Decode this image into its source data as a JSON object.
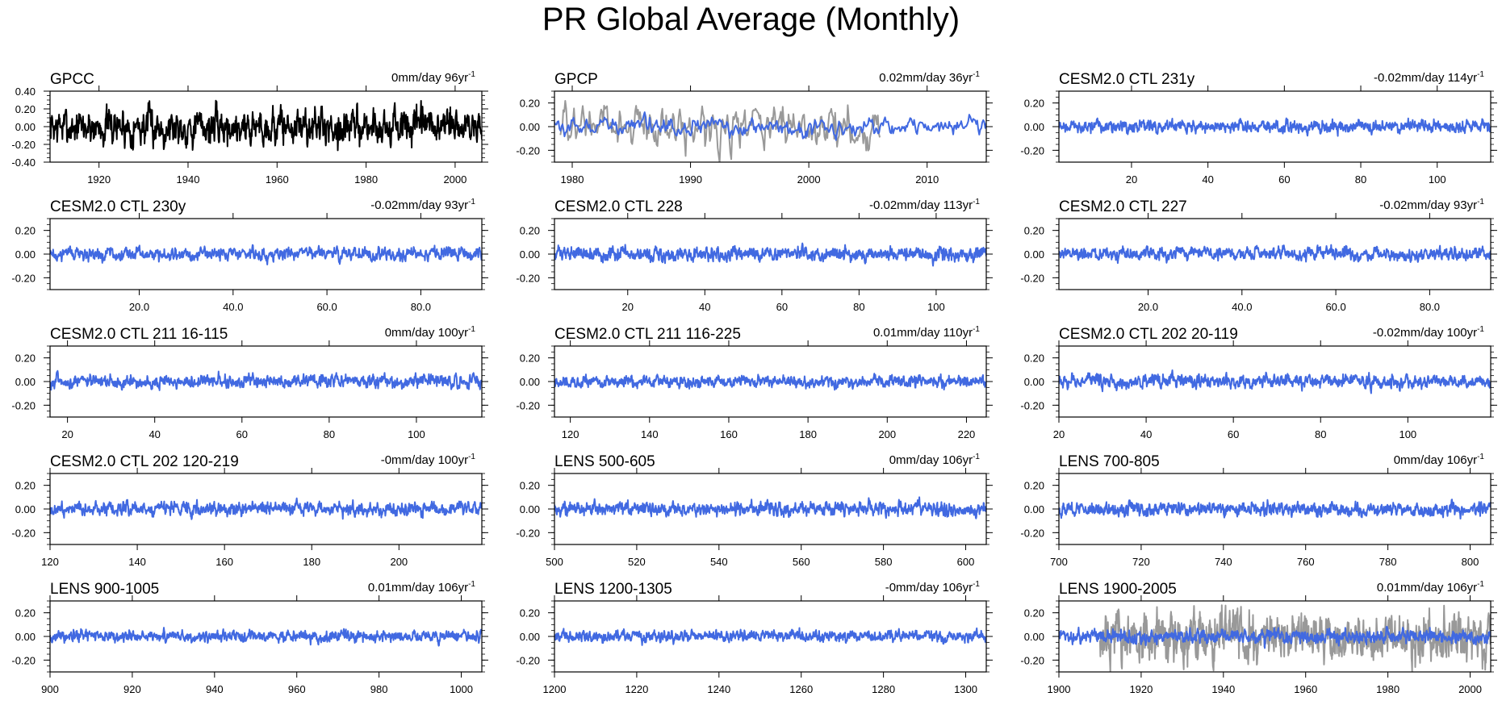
{
  "title": "PR Global Average (Monthly)",
  "colors": {
    "model": "#4169e1",
    "obs": "#000000",
    "obs_overlay": "#999999",
    "axes": "#000000"
  },
  "chart_data": [
    {
      "type": "line",
      "title": "GPCC",
      "trend": "0mm/day 96yr",
      "trend_sup": "-1",
      "x_range": [
        1909,
        2006
      ],
      "ylim": [
        -0.4,
        0.4
      ],
      "yticks": [
        "0.40",
        "0.20",
        "0.00",
        "-0.20",
        "-0.40"
      ],
      "ytick_values": [
        0.4,
        0.2,
        0,
        -0.2,
        -0.4
      ],
      "xticks": [
        "1920",
        "1940",
        "1960",
        "1980",
        "2000"
      ],
      "xtick_values": [
        1920,
        1940,
        1960,
        1980,
        2000
      ],
      "series": [
        {
          "name": "GPCC",
          "role": "obs",
          "amplitude": 0.26,
          "points": 1152
        }
      ]
    },
    {
      "type": "line",
      "title": "GPCP",
      "trend": "0.02mm/day 36yr",
      "trend_sup": "-1",
      "x_range": [
        1978.5,
        2015
      ],
      "ylim": [
        -0.3,
        0.3
      ],
      "yticks": [
        "0.20",
        "0.00",
        "-0.20"
      ],
      "ytick_values": [
        0.2,
        0,
        -0.2
      ],
      "xticks": [
        "1980",
        "1990",
        "2000",
        "2010"
      ],
      "xtick_values": [
        1980,
        1990,
        2000,
        2010
      ],
      "series": [
        {
          "name": "GPCP",
          "role": "obs_overlay",
          "amplitude": 0.22,
          "points": 330,
          "x_range": [
            1979,
            2006
          ]
        },
        {
          "name": "GPCP",
          "role": "model",
          "amplitude": 0.09,
          "points": 432
        }
      ]
    },
    {
      "type": "line",
      "title": "CESM2.0 CTL 231y",
      "trend": "-0.02mm/day 114yr",
      "trend_sup": "-1",
      "x_range": [
        1,
        114
      ],
      "ylim": [
        -0.3,
        0.3
      ],
      "yticks": [
        "0.20",
        "0.00",
        "-0.20"
      ],
      "ytick_values": [
        0.2,
        0,
        -0.2
      ],
      "xticks": [
        "20",
        "40",
        "60",
        "80",
        "100"
      ],
      "xtick_values": [
        20,
        40,
        60,
        80,
        100
      ],
      "series": [
        {
          "name": "CESM2.0 CTL 231y",
          "role": "model",
          "amplitude": 0.06,
          "points": 1368
        }
      ]
    },
    {
      "type": "line",
      "title": "CESM2.0 CTL 230y",
      "trend": "-0.02mm/day 93yr",
      "trend_sup": "-1",
      "x_range": [
        1,
        93
      ],
      "ylim": [
        -0.3,
        0.3
      ],
      "yticks": [
        "0.20",
        "0.00",
        "-0.20"
      ],
      "ytick_values": [
        0.2,
        0,
        -0.2
      ],
      "xticks": [
        "20.0",
        "40.0",
        "60.0",
        "80.0"
      ],
      "xtick_values": [
        20,
        40,
        60,
        80
      ],
      "series": [
        {
          "name": "CESM2.0 CTL 230y",
          "role": "model",
          "amplitude": 0.07,
          "points": 1116
        }
      ]
    },
    {
      "type": "line",
      "title": "CESM2.0 CTL 228",
      "trend": "-0.02mm/day 113yr",
      "trend_sup": "-1",
      "x_range": [
        1,
        113
      ],
      "ylim": [
        -0.3,
        0.3
      ],
      "yticks": [
        "0.20",
        "0.00",
        "-0.20"
      ],
      "ytick_values": [
        0.2,
        0,
        -0.2
      ],
      "xticks": [
        "20",
        "40",
        "60",
        "80",
        "100"
      ],
      "xtick_values": [
        20,
        40,
        60,
        80,
        100
      ],
      "series": [
        {
          "name": "CESM2.0 CTL 228",
          "role": "model",
          "amplitude": 0.07,
          "points": 1356
        }
      ]
    },
    {
      "type": "line",
      "title": "CESM2.0 CTL 227",
      "trend": "-0.02mm/day 93yr",
      "trend_sup": "-1",
      "x_range": [
        1,
        93
      ],
      "ylim": [
        -0.3,
        0.3
      ],
      "yticks": [
        "0.20",
        "0.00",
        "-0.20"
      ],
      "ytick_values": [
        0.2,
        0,
        -0.2
      ],
      "xticks": [
        "20.0",
        "40.0",
        "60.0",
        "80.0"
      ],
      "xtick_values": [
        20,
        40,
        60,
        80
      ],
      "series": [
        {
          "name": "CESM2.0 CTL 227",
          "role": "model",
          "amplitude": 0.07,
          "points": 1116
        }
      ]
    },
    {
      "type": "line",
      "title": "CESM2.0 CTL 211 16-115",
      "trend": "0mm/day 100yr",
      "trend_sup": "-1",
      "x_range": [
        16,
        115
      ],
      "ylim": [
        -0.3,
        0.3
      ],
      "yticks": [
        "0.20",
        "0.00",
        "-0.20"
      ],
      "ytick_values": [
        0.2,
        0,
        -0.2
      ],
      "xticks": [
        "20",
        "40",
        "60",
        "80",
        "100"
      ],
      "xtick_values": [
        20,
        40,
        60,
        80,
        100
      ],
      "series": [
        {
          "name": "CESM2.0 CTL 211 16-115",
          "role": "model",
          "amplitude": 0.07,
          "points": 1200
        }
      ]
    },
    {
      "type": "line",
      "title": "CESM2.0 CTL 211 116-225",
      "trend": "0.01mm/day 110yr",
      "trend_sup": "-1",
      "x_range": [
        116,
        225
      ],
      "ylim": [
        -0.3,
        0.3
      ],
      "yticks": [
        "0.20",
        "0.00",
        "-0.20"
      ],
      "ytick_values": [
        0.2,
        0,
        -0.2
      ],
      "xticks": [
        "120",
        "140",
        "160",
        "180",
        "200",
        "220"
      ],
      "xtick_values": [
        120,
        140,
        160,
        180,
        200,
        220
      ],
      "series": [
        {
          "name": "CESM2.0 CTL 211 116-225",
          "role": "model",
          "amplitude": 0.06,
          "points": 1320
        }
      ]
    },
    {
      "type": "line",
      "title": "CESM2.0 CTL 202 20-119",
      "trend": "-0.02mm/day 100yr",
      "trend_sup": "-1",
      "x_range": [
        20,
        119
      ],
      "ylim": [
        -0.3,
        0.3
      ],
      "yticks": [
        "0.20",
        "0.00",
        "-0.20"
      ],
      "ytick_values": [
        0.2,
        0,
        -0.2
      ],
      "xticks": [
        "20",
        "40",
        "60",
        "80",
        "100"
      ],
      "xtick_values": [
        20,
        40,
        60,
        80,
        100
      ],
      "series": [
        {
          "name": "CESM2.0 CTL 202 20-119",
          "role": "model",
          "amplitude": 0.07,
          "points": 1200
        }
      ]
    },
    {
      "type": "line",
      "title": "CESM2.0 CTL 202 120-219",
      "trend": "-0mm/day 100yr",
      "trend_sup": "-1",
      "x_range": [
        120,
        219
      ],
      "ylim": [
        -0.3,
        0.3
      ],
      "yticks": [
        "0.20",
        "0.00",
        "-0.20"
      ],
      "ytick_values": [
        0.2,
        0,
        -0.2
      ],
      "xticks": [
        "120",
        "140",
        "160",
        "180",
        "200"
      ],
      "xtick_values": [
        120,
        140,
        160,
        180,
        200
      ],
      "series": [
        {
          "name": "CESM2.0 CTL 202 120-219",
          "role": "model",
          "amplitude": 0.07,
          "points": 1200
        }
      ]
    },
    {
      "type": "line",
      "title": "LENS 500-605",
      "trend": "0mm/day 106yr",
      "trend_sup": "-1",
      "x_range": [
        500,
        605
      ],
      "ylim": [
        -0.3,
        0.3
      ],
      "yticks": [
        "0.20",
        "0.00",
        "-0.20"
      ],
      "ytick_values": [
        0.2,
        0,
        -0.2
      ],
      "xticks": [
        "500",
        "520",
        "540",
        "560",
        "580",
        "600"
      ],
      "xtick_values": [
        500,
        520,
        540,
        560,
        580,
        600
      ],
      "series": [
        {
          "name": "LENS 500-605",
          "role": "model",
          "amplitude": 0.07,
          "points": 1272
        }
      ]
    },
    {
      "type": "line",
      "title": "LENS 700-805",
      "trend": "0mm/day 106yr",
      "trend_sup": "-1",
      "x_range": [
        700,
        805
      ],
      "ylim": [
        -0.3,
        0.3
      ],
      "yticks": [
        "0.20",
        "0.00",
        "-0.20"
      ],
      "ytick_values": [
        0.2,
        0,
        -0.2
      ],
      "xticks": [
        "700",
        "720",
        "740",
        "760",
        "780",
        "800"
      ],
      "xtick_values": [
        700,
        720,
        740,
        760,
        780,
        800
      ],
      "series": [
        {
          "name": "LENS 700-805",
          "role": "model",
          "amplitude": 0.07,
          "points": 1272
        }
      ]
    },
    {
      "type": "line",
      "title": "LENS 900-1005",
      "trend": "0.01mm/day 106yr",
      "trend_sup": "-1",
      "x_range": [
        900,
        1005
      ],
      "ylim": [
        -0.3,
        0.3
      ],
      "yticks": [
        "0.20",
        "0.00",
        "-0.20"
      ],
      "ytick_values": [
        0.2,
        0,
        -0.2
      ],
      "xticks": [
        "900",
        "920",
        "940",
        "960",
        "980",
        "1000"
      ],
      "xtick_values": [
        900,
        920,
        940,
        960,
        980,
        1000
      ],
      "series": [
        {
          "name": "LENS 900-1005",
          "role": "model",
          "amplitude": 0.06,
          "points": 1272
        }
      ]
    },
    {
      "type": "line",
      "title": "LENS 1200-1305",
      "trend": "-0mm/day 106yr",
      "trend_sup": "-1",
      "x_range": [
        1200,
        1305
      ],
      "ylim": [
        -0.3,
        0.3
      ],
      "yticks": [
        "0.20",
        "0.00",
        "-0.20"
      ],
      "ytick_values": [
        0.2,
        0,
        -0.2
      ],
      "xticks": [
        "1200",
        "1220",
        "1240",
        "1260",
        "1280",
        "1300"
      ],
      "xtick_values": [
        1200,
        1220,
        1240,
        1260,
        1280,
        1300
      ],
      "series": [
        {
          "name": "LENS 1200-1305",
          "role": "model",
          "amplitude": 0.06,
          "points": 1272
        }
      ]
    },
    {
      "type": "line",
      "title": "LENS 1900-2005",
      "trend": "0.01mm/day 106yr",
      "trend_sup": "-1",
      "x_range": [
        1900,
        2005
      ],
      "ylim": [
        -0.3,
        0.3
      ],
      "yticks": [
        "0.20",
        "0.00",
        "-0.20"
      ],
      "ytick_values": [
        0.2,
        0,
        -0.2
      ],
      "xticks": [
        "1900",
        "1920",
        "1940",
        "1960",
        "1980",
        "2000"
      ],
      "xtick_values": [
        1900,
        1920,
        1940,
        1960,
        1980,
        2000
      ],
      "series": [
        {
          "name": "GPCC",
          "role": "obs_overlay",
          "amplitude": 0.24,
          "points": 1140,
          "x_range": [
            1910,
            2005
          ]
        },
        {
          "name": "LENS 1900-2005",
          "role": "model",
          "amplitude": 0.07,
          "points": 1272
        }
      ]
    }
  ]
}
